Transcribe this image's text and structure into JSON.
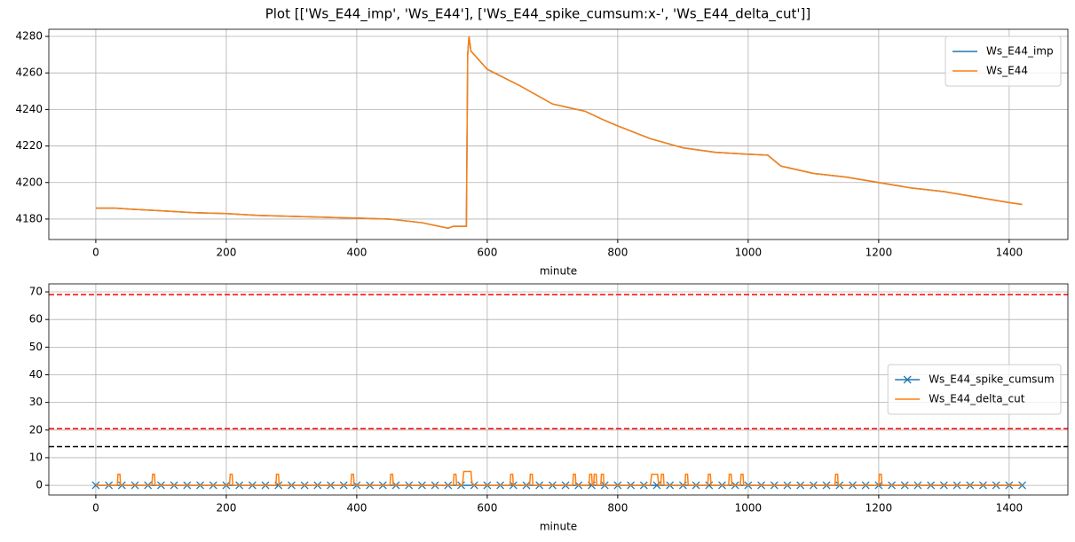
{
  "title": "Plot [['Ws_E44_imp', 'Ws_E44'], ['Ws_E44_spike_cumsum:x-', 'Ws_E44_delta_cut']]",
  "chart_data": [
    {
      "type": "line",
      "x_label": "minute",
      "xlim": [
        -72,
        1490
      ],
      "ylim": [
        4168.8,
        4283.9
      ],
      "xticks": [
        0,
        200,
        400,
        600,
        800,
        1000,
        1200,
        1400
      ],
      "yticks": [
        4180,
        4200,
        4220,
        4240,
        4260,
        4280
      ],
      "grid": true,
      "legend": "upper right",
      "series": [
        {
          "name": "Ws_E44_imp",
          "color": "#1f77b4",
          "x": [
            0,
            30,
            50,
            100,
            150,
            200,
            250,
            300,
            350,
            400,
            450,
            500,
            540,
            548,
            568,
            570,
            572,
            575,
            590,
            600,
            650,
            700,
            750,
            780,
            800,
            850,
            900,
            950,
            1000,
            1030,
            1050,
            1100,
            1150,
            1200,
            1250,
            1300,
            1350,
            1400,
            1420
          ],
          "values": [
            4186,
            4186,
            4185.5,
            4184.5,
            4183.5,
            4183,
            4182,
            4181.5,
            4181,
            4180.5,
            4180,
            4178,
            4175,
            4176,
            4176,
            4270,
            4280,
            4272,
            4266,
            4262,
            4253,
            4243,
            4239,
            4234,
            4231,
            4224,
            4219,
            4216.5,
            4215.5,
            4215,
            4209,
            4205,
            4203,
            4200,
            4197,
            4195,
            4192,
            4189,
            4188
          ]
        },
        {
          "name": "Ws_E44",
          "color": "#ff7f0e",
          "x": [
            0,
            30,
            50,
            100,
            150,
            200,
            250,
            300,
            350,
            400,
            450,
            500,
            540,
            548,
            568,
            570,
            572,
            575,
            590,
            600,
            650,
            700,
            750,
            780,
            800,
            850,
            900,
            950,
            1000,
            1030,
            1050,
            1100,
            1150,
            1200,
            1250,
            1300,
            1350,
            1400,
            1420
          ],
          "values": [
            4186,
            4186,
            4185.5,
            4184.5,
            4183.5,
            4183,
            4182,
            4181.5,
            4181,
            4180.5,
            4180,
            4178,
            4175,
            4176,
            4176,
            4270,
            4280,
            4272,
            4266,
            4262,
            4253,
            4243,
            4239,
            4234,
            4231,
            4224,
            4219,
            4216.5,
            4215.5,
            4215,
            4209,
            4205,
            4203,
            4200,
            4197,
            4195,
            4192,
            4189,
            4188
          ]
        }
      ]
    },
    {
      "type": "line",
      "x_label": "minute",
      "xlim": [
        -72,
        1490
      ],
      "ylim": [
        -3.5,
        72.9
      ],
      "xticks": [
        0,
        200,
        400,
        600,
        800,
        1000,
        1200,
        1400
      ],
      "yticks": [
        0,
        10,
        20,
        30,
        40,
        50,
        60,
        70
      ],
      "grid": true,
      "legend": "center right",
      "hlines": [
        {
          "value": 69,
          "color": "#ff0000"
        },
        {
          "value": 20.5,
          "color": "#ff0000"
        },
        {
          "value": 14,
          "color": "#000000"
        }
      ],
      "series": [
        {
          "name": "Ws_E44_spike_cumsum",
          "color": "#1f77b4",
          "marker": "x",
          "x": [
            0,
            20,
            40,
            60,
            80,
            100,
            120,
            140,
            160,
            180,
            200,
            220,
            240,
            260,
            280,
            300,
            320,
            340,
            360,
            380,
            400,
            420,
            440,
            460,
            480,
            500,
            520,
            540,
            560,
            580,
            600,
            620,
            640,
            660,
            680,
            700,
            720,
            740,
            760,
            780,
            800,
            820,
            840,
            860,
            880,
            900,
            920,
            940,
            960,
            980,
            1000,
            1020,
            1040,
            1060,
            1080,
            1100,
            1120,
            1140,
            1160,
            1180,
            1200,
            1220,
            1240,
            1260,
            1280,
            1300,
            1320,
            1340,
            1360,
            1380,
            1400,
            1420
          ],
          "values": [
            0,
            0,
            0,
            0,
            0,
            0,
            0,
            0,
            0,
            0,
            0,
            0,
            0,
            0,
            0,
            0,
            0,
            0,
            0,
            0,
            0,
            0,
            0,
            0,
            0,
            0,
            0,
            0,
            0,
            0,
            0,
            0,
            0,
            0,
            0,
            0,
            0,
            0,
            0,
            0,
            0,
            0,
            0,
            0,
            0,
            0,
            0,
            0,
            0,
            0,
            0,
            0,
            0,
            0,
            0,
            0,
            0,
            0,
            0,
            0,
            0,
            0,
            0,
            0,
            0,
            0,
            0,
            0,
            0,
            0,
            0,
            0
          ]
        },
        {
          "name": "Ws_E44_delta_cut",
          "color": "#ff7f0e",
          "x": [
            0,
            33,
            34,
            37,
            38,
            86,
            87,
            90,
            91,
            205,
            206,
            209,
            210,
            276,
            277,
            280,
            281,
            391,
            392,
            395,
            396,
            451,
            452,
            455,
            456,
            548,
            549,
            552,
            553,
            562,
            564,
            575,
            577,
            635,
            636,
            639,
            640,
            665,
            666,
            669,
            670,
            731,
            732,
            735,
            736,
            756,
            757,
            760,
            761,
            763,
            764,
            767,
            768,
            774,
            775,
            778,
            779,
            850,
            852,
            861,
            863,
            866,
            867,
            870,
            871,
            903,
            904,
            907,
            908,
            938,
            939,
            942,
            943,
            970,
            971,
            974,
            975,
            988,
            989,
            992,
            993,
            1133,
            1134,
            1137,
            1138,
            1200,
            1201,
            1204,
            1205,
            1420
          ],
          "values": [
            0,
            0,
            4,
            4,
            0,
            0,
            4,
            4,
            0,
            0,
            4,
            4,
            0,
            0,
            4,
            4,
            0,
            0,
            4,
            4,
            0,
            0,
            4,
            4,
            0,
            0,
            4,
            4,
            0,
            0,
            5,
            5,
            0,
            0,
            4,
            4,
            0,
            0,
            4,
            4,
            0,
            0,
            4,
            4,
            0,
            0,
            4,
            4,
            0,
            0,
            4,
            4,
            0,
            0,
            4,
            4,
            0,
            0,
            4,
            4,
            0,
            0,
            4,
            4,
            0,
            0,
            4,
            4,
            0,
            0,
            4,
            4,
            0,
            0,
            4,
            4,
            0,
            0,
            4,
            4,
            0,
            0,
            4,
            4,
            0,
            0,
            4,
            4,
            0,
            0
          ]
        }
      ]
    }
  ]
}
